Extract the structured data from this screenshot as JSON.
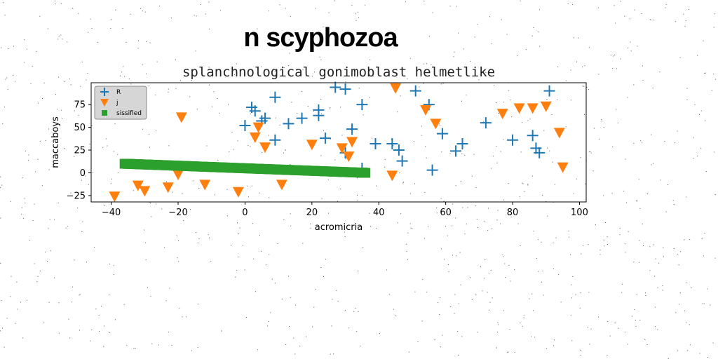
{
  "chart_data": {
    "type": "scatter",
    "title": "n scyphozoa",
    "subtitle": "splanchnological gonimoblast helmetlike",
    "xlabel": "acromicria",
    "ylabel": "maccaboys",
    "xlim": [
      -46,
      102
    ],
    "ylim": [
      -32,
      99
    ],
    "xticks": [
      -40,
      -20,
      0,
      20,
      40,
      60,
      80,
      100
    ],
    "yticks": [
      -25,
      0,
      25,
      50,
      75
    ],
    "xtick_labels": [
      "−40",
      "−20",
      "0",
      "20",
      "40",
      "60",
      "80",
      "100"
    ],
    "ytick_labels": [
      "−25",
      "0",
      "25",
      "50",
      "75"
    ],
    "grid": false,
    "legend_position": "top-left",
    "series": [
      {
        "name": "R",
        "marker": "plus",
        "color": "#1f77b4",
        "points": [
          [
            0,
            52
          ],
          [
            2,
            72
          ],
          [
            3,
            68
          ],
          [
            5,
            57
          ],
          [
            6,
            60
          ],
          [
            9,
            36
          ],
          [
            9,
            83
          ],
          [
            13,
            54
          ],
          [
            17,
            60
          ],
          [
            22,
            63
          ],
          [
            22,
            69
          ],
          [
            24,
            38
          ],
          [
            27,
            94
          ],
          [
            30,
            92
          ],
          [
            30,
            22
          ],
          [
            32,
            48
          ],
          [
            35,
            5
          ],
          [
            35,
            75
          ],
          [
            39,
            32
          ],
          [
            44,
            32
          ],
          [
            46,
            25
          ],
          [
            47,
            13
          ],
          [
            51,
            90
          ],
          [
            55,
            75
          ],
          [
            56,
            3
          ],
          [
            59,
            43
          ],
          [
            63,
            24
          ],
          [
            65,
            32
          ],
          [
            72,
            55
          ],
          [
            80,
            36
          ],
          [
            86,
            41
          ],
          [
            87,
            27
          ],
          [
            88,
            22
          ],
          [
            91,
            90
          ]
        ]
      },
      {
        "name": "j",
        "marker": "triangle-down",
        "color": "#ff7f0e",
        "points": [
          [
            -39,
            -26
          ],
          [
            -32,
            -14
          ],
          [
            -30,
            -20
          ],
          [
            -23,
            -16
          ],
          [
            -20,
            -2
          ],
          [
            -19,
            61
          ],
          [
            -12,
            -13
          ],
          [
            -2,
            -21
          ],
          [
            3,
            39
          ],
          [
            4,
            50
          ],
          [
            6,
            28
          ],
          [
            11,
            -13
          ],
          [
            20,
            31
          ],
          [
            29,
            27
          ],
          [
            31,
            18
          ],
          [
            32,
            34
          ],
          [
            44,
            -3
          ],
          [
            45,
            93
          ],
          [
            54,
            69
          ],
          [
            57,
            54
          ],
          [
            77,
            65
          ],
          [
            82,
            71
          ],
          [
            86,
            71
          ],
          [
            90,
            73
          ],
          [
            94,
            44
          ],
          [
            95,
            6
          ]
        ]
      },
      {
        "name": "sissified",
        "marker": "square",
        "color": "#2ca02c",
        "line_from": [
          -36,
          10
        ],
        "line_to": [
          36,
          0
        ]
      }
    ]
  }
}
